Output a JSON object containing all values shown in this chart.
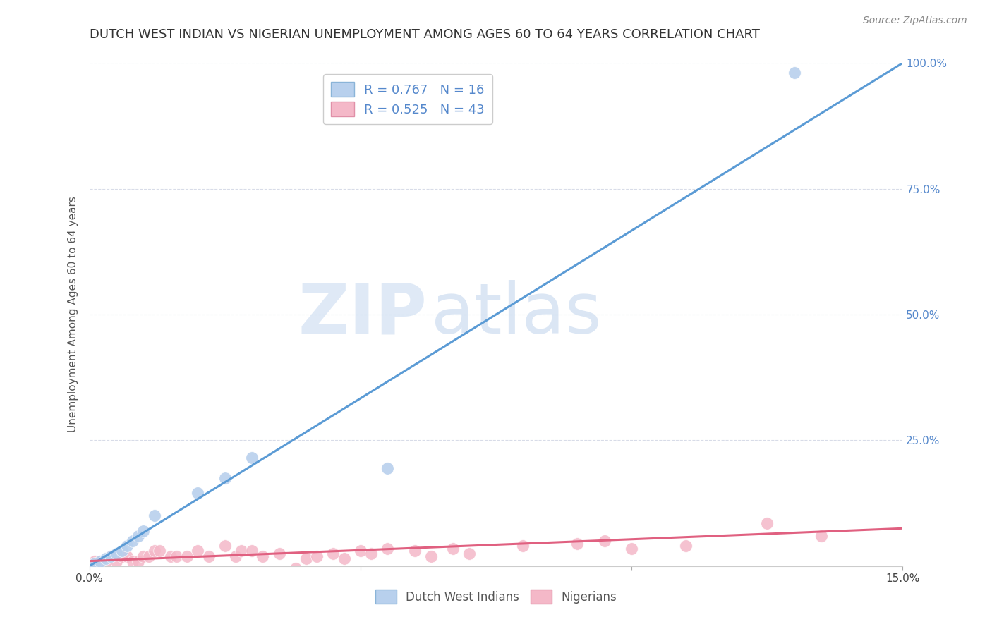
{
  "title": "DUTCH WEST INDIAN VS NIGERIAN UNEMPLOYMENT AMONG AGES 60 TO 64 YEARS CORRELATION CHART",
  "source": "Source: ZipAtlas.com",
  "ylabel": "Unemployment Among Ages 60 to 64 years",
  "xlim": [
    0.0,
    0.15
  ],
  "ylim": [
    0.0,
    1.0
  ],
  "dutch_west_indians": {
    "color": "#b8d0ed",
    "line_color": "#5b9bd5",
    "x": [
      0.001,
      0.002,
      0.003,
      0.004,
      0.005,
      0.006,
      0.007,
      0.008,
      0.009,
      0.01,
      0.012,
      0.02,
      0.025,
      0.03,
      0.055,
      0.13
    ],
    "y": [
      0.005,
      0.01,
      0.015,
      0.02,
      0.025,
      0.03,
      0.04,
      0.05,
      0.06,
      0.07,
      0.1,
      0.145,
      0.175,
      0.215,
      0.195,
      0.98
    ],
    "line_x": [
      0.0,
      0.15
    ],
    "line_y": [
      0.0,
      1.0
    ]
  },
  "nigerians": {
    "color": "#f4b8c8",
    "line_color": "#e06080",
    "x": [
      0.001,
      0.002,
      0.003,
      0.004,
      0.005,
      0.006,
      0.007,
      0.008,
      0.009,
      0.01,
      0.011,
      0.012,
      0.013,
      0.015,
      0.016,
      0.018,
      0.02,
      0.022,
      0.025,
      0.027,
      0.028,
      0.03,
      0.032,
      0.035,
      0.038,
      0.04,
      0.042,
      0.045,
      0.047,
      0.05,
      0.052,
      0.055,
      0.06,
      0.063,
      0.067,
      0.07,
      0.08,
      0.09,
      0.095,
      0.1,
      0.11,
      0.125,
      0.135
    ],
    "y": [
      0.01,
      0.01,
      0.01,
      0.02,
      0.01,
      0.02,
      0.02,
      0.01,
      0.01,
      0.02,
      0.02,
      0.03,
      0.03,
      0.02,
      0.02,
      0.02,
      0.03,
      0.02,
      0.04,
      0.02,
      0.03,
      0.03,
      0.02,
      0.025,
      -0.005,
      0.015,
      0.02,
      0.025,
      0.015,
      0.03,
      0.025,
      0.035,
      0.03,
      0.02,
      0.035,
      0.025,
      0.04,
      0.045,
      0.05,
      0.035,
      0.04,
      0.085,
      0.06
    ],
    "line_x": [
      0.0,
      0.15
    ],
    "line_y": [
      0.01,
      0.075
    ]
  },
  "watermark_zip": "ZIP",
  "watermark_atlas": "atlas",
  "background_color": "#ffffff",
  "grid_color": "#d8dce8",
  "title_fontsize": 13,
  "axis_label_fontsize": 11,
  "tick_fontsize": 11,
  "source_fontsize": 10,
  "legend1_label1": "R = 0.767   N = 16",
  "legend1_label2": "R = 0.525   N = 43",
  "legend2_label1": "Dutch West Indians",
  "legend2_label2": "Nigerians"
}
